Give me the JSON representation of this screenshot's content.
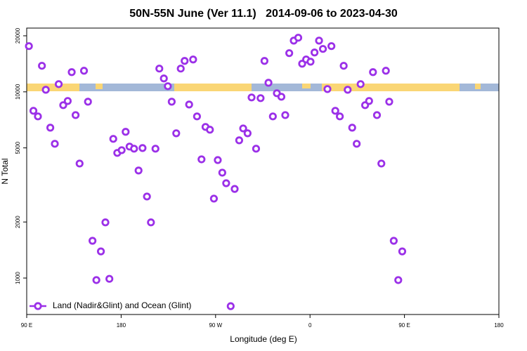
{
  "chart_data": {
    "type": "scatter",
    "title": "50N-55N June (Ver 11.1)   2014-09-06 to 2023-04-30",
    "x_label": "Longitude (deg E)",
    "y_label": "N Total",
    "xlim": [
      90,
      540
    ],
    "ylim": [
      637,
      22000
    ],
    "yscale": "log",
    "legend": "bottom-left",
    "xticks": [
      {
        "value": 90,
        "label": "90 E"
      },
      180,
      {
        "value": 270,
        "label": "90 W"
      },
      {
        "value": 360,
        "label": "0"
      },
      {
        "value": 450,
        "label": "90 E"
      },
      {
        "value": 540,
        "label": "180"
      }
    ],
    "yticks": [
      1000,
      2000,
      5000,
      10000,
      20000
    ],
    "series": [
      {
        "name": "Land (Nadir&Glint) and Ocean (Glint)",
        "color": "#9b30e8",
        "x": [
          92.1,
          96.4,
          100.7,
          104.5,
          108.2,
          112.5,
          116.8,
          120.5,
          124.8,
          129.1,
          132.9,
          136.6,
          140.4,
          144.6,
          148.4,
          152.7,
          156.4,
          160.7,
          165,
          168.8,
          172.5,
          176.3,
          180.5,
          184.3,
          188,
          192.3,
          196.6,
          200.4,
          204.6,
          208.4,
          212.7,
          216.4,
          220.7,
          224.5,
          228.2,
          232.5,
          236.8,
          240.5,
          244.8,
          248.6,
          252.3,
          256.6,
          260.4,
          264.6,
          268.4,
          272.1,
          276.4,
          280.1,
          284.4,
          288.2,
          292.5,
          296.3,
          300.5,
          304.3,
          308.6,
          312.9,
          316.6,
          320.4,
          324.6,
          328.4,
          332.7,
          336.4,
          340.2,
          344.5,
          348.8,
          352.5,
          356.3,
          360.5,
          364.3,
          368.6,
          372.3,
          376.6,
          380.4,
          384.1,
          388.4,
          392.1,
          395.9,
          400.2,
          404.5,
          408.2,
          412.5,
          416.3,
          420,
          423.8,
          428,
          432.3,
          435.5,
          439.8,
          444.1,
          447.9
        ],
        "values": [
          17600,
          7910,
          7380,
          13800,
          10260,
          6420,
          5260,
          11000,
          8480,
          8930,
          12760,
          7500,
          4120,
          12980,
          8850,
          1585,
          975,
          1390,
          1990,
          990,
          5590,
          4700,
          4860,
          6100,
          5080,
          4950,
          3780,
          4990,
          2740,
          1990,
          4950,
          13330,
          11800,
          10720,
          8850,
          5990,
          13330,
          14660,
          8550,
          14920,
          7380,
          4340,
          6480,
          6260,
          2670,
          4300,
          3680,
          3230,
          706,
          3010,
          5490,
          6360,
          5990,
          9330,
          4950,
          9250,
          14660,
          11190,
          7380,
          9830,
          9410,
          7500,
          16140,
          18840,
          19530,
          14160,
          14920,
          14520,
          16270,
          18840,
          17000,
          10350,
          17600,
          7910,
          7380,
          13800,
          10260,
          6420,
          5260,
          11000,
          8480,
          8930,
          12760,
          7500,
          4120,
          12980,
          8850,
          1585,
          975,
          1390
        ]
      }
    ]
  }
}
